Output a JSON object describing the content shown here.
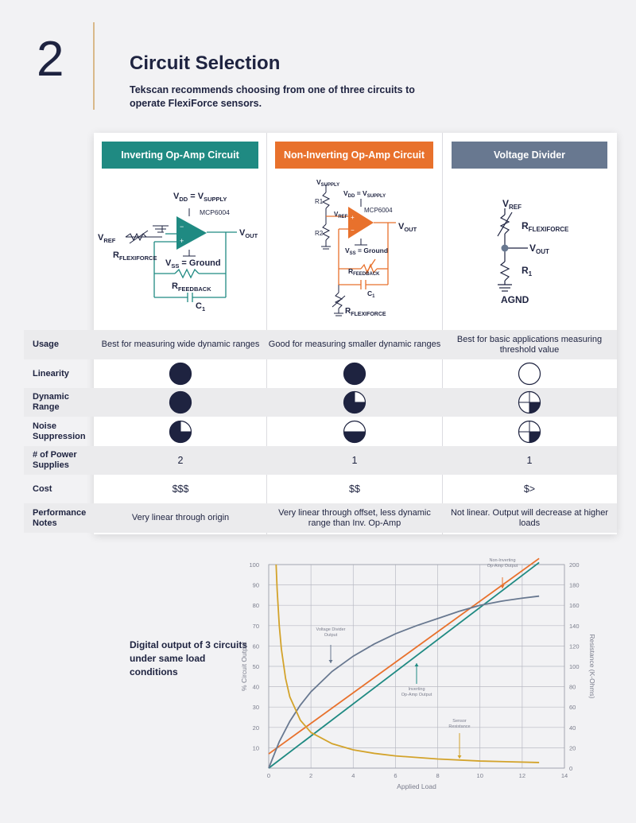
{
  "section": {
    "number": "2",
    "title": "Circuit Selection",
    "subtitle": "Tekscan recommends choosing from one of three circuits to operate FlexiForce sensors."
  },
  "columns": [
    {
      "name": "Inverting Op-Amp Circuit",
      "color": "#1f8a82"
    },
    {
      "name": "Non-Inverting Op-Amp Circuit",
      "color": "#e8712c"
    },
    {
      "name": "Voltage Divider",
      "color": "#687890"
    }
  ],
  "circuits": {
    "inverting": {
      "vdd": "V",
      "vdd_sub": "DD",
      "eq": " = V",
      "supply_sub": "SUPPLY",
      "chip": "MCP6004",
      "vref": "V",
      "vref_sub": "REF",
      "vout": "V",
      "vout_sub": "OUT",
      "rflex": "R",
      "rflex_sub": "FLEXIFORCE",
      "vss": "V",
      "vss_sub": "SS",
      "ground": " = Ground",
      "rfb": "R",
      "rfb_sub": "FEEDBACK",
      "c1": "C",
      "c1_sub": "1"
    },
    "noninverting": {
      "vsupply": "V",
      "vsupply_sub": "SUPPLY",
      "r1": "R1",
      "r2": "R2",
      "vdd": "V",
      "vdd_sub": "DD",
      "eq": " = V",
      "supply_sub": "SUPPLY",
      "vref": "V",
      "vref_sub": "REF",
      "chip": "MCP6004",
      "vout": "V",
      "vout_sub": "OUT",
      "vss": "V",
      "vss_sub": "SS",
      "ground": " = Ground",
      "rfb": "R",
      "rfb_sub": "FEEDBACK",
      "c1": "C",
      "c1_sub": "1",
      "rflex": "R",
      "rflex_sub": "FLEXIFORCE"
    },
    "divider": {
      "vref": "V",
      "vref_sub": "REF",
      "rflex": "R",
      "rflex_sub": "FLEXIFORCE",
      "vout": "V",
      "vout_sub": "OUT",
      "r1": "R",
      "r1_sub": "1",
      "agnd": "AGND"
    }
  },
  "rows": [
    {
      "label": "Usage",
      "values": [
        "Best for measuring wide dynamic ranges",
        "Good for measuring smaller dynamic ranges",
        "Best for basic applications measuring threshold value"
      ]
    },
    {
      "label": "Linearity",
      "ratings": [
        1.0,
        1.0,
        0.0
      ]
    },
    {
      "label": "Dynamic Range",
      "ratings": [
        1.0,
        0.75,
        0.25
      ]
    },
    {
      "label": "Noise Suppression",
      "ratings": [
        0.75,
        0.5,
        0.25
      ]
    },
    {
      "label": "# of Power Supplies",
      "values": [
        "2",
        "1",
        "1"
      ]
    },
    {
      "label": "Cost",
      "values": [
        "$$$",
        "$$",
        "$>"
      ]
    },
    {
      "label": "Performance Notes",
      "values": [
        "Very linear through origin",
        "Very linear through offset, less dynamic range than Inv. Op-Amp",
        "Not linear.  Output will decrease at higher loads"
      ]
    }
  ],
  "rating_color": "#1e2340",
  "chart_caption": "Digital output of 3 circuits under same load conditions",
  "chart_data": {
    "type": "line",
    "xlabel": "Applied Load",
    "ylabel": "% Circuit Output",
    "y2label": "Resistance (K-Ohms)",
    "xlim": [
      0,
      14
    ],
    "ylim": [
      0,
      100
    ],
    "y2lim": [
      0,
      200
    ],
    "xticks": [
      "0",
      "2",
      "4",
      "6",
      "8",
      "10",
      "12",
      "14"
    ],
    "yticks": [
      "10",
      "20",
      "30",
      "40",
      "50",
      "60",
      "70",
      "80",
      "90",
      "100"
    ],
    "y2ticks": [
      "0",
      "20",
      "40",
      "60",
      "80",
      "100",
      "120",
      "140",
      "160",
      "180",
      "200"
    ],
    "grid": true,
    "series": [
      {
        "name": "Non-Inverting Op-Amp Output",
        "color": "#e8712c",
        "axis": "left",
        "x": [
          0,
          12.8
        ],
        "y": [
          7,
          103
        ]
      },
      {
        "name": "Inverting Op-Amp Output",
        "color": "#1f8a82",
        "axis": "left",
        "x": [
          0,
          12.8
        ],
        "y": [
          0,
          101
        ]
      },
      {
        "name": "Voltage Divider Output",
        "color": "#687890",
        "axis": "left",
        "x": [
          0,
          0.5,
          1,
          1.5,
          2,
          3,
          4,
          5,
          6,
          7,
          8,
          9,
          10,
          11,
          12,
          12.8
        ],
        "y": [
          0,
          13,
          23,
          31,
          37.5,
          47.5,
          55,
          61,
          66,
          70,
          73.5,
          77,
          80,
          82,
          83.5,
          84.5
        ]
      },
      {
        "name": "Sensor Resistance",
        "color": "#d3a32b",
        "axis": "right",
        "x": [
          0.35,
          0.4,
          0.5,
          0.6,
          0.8,
          1,
          1.5,
          2,
          3,
          4,
          5,
          6,
          8,
          10,
          12.8
        ],
        "y": [
          200,
          175,
          140,
          117,
          88,
          70,
          47,
          35,
          24,
          18,
          14.5,
          12,
          9,
          7,
          5.5
        ]
      }
    ],
    "annotations": [
      {
        "text": [
          "Non-Inverting",
          "Op-Amp Output"
        ],
        "series": 0
      },
      {
        "text": [
          "Voltage Divider",
          "Output"
        ],
        "series": 2
      },
      {
        "text": [
          "Inverting",
          "Op-Amp Output"
        ],
        "series": 1
      },
      {
        "text": [
          "Sensor",
          "Resistance"
        ],
        "series": 3
      }
    ]
  }
}
